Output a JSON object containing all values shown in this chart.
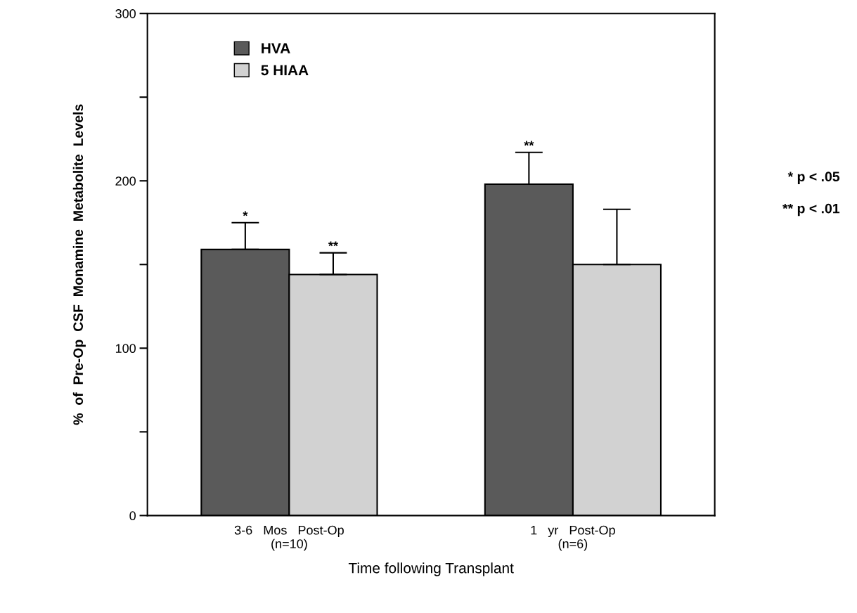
{
  "chart_data": {
    "type": "bar",
    "categories": [
      "3-6   Mos   Post-Op\n(n=10)",
      "1   yr   Post-Op\n(n=6)"
    ],
    "xlabel": "Time following Transplant",
    "ylabel": "%  of  Pre-Op  CSF  Monamine  Metabolite  Levels",
    "series": [
      {
        "name": "HVA",
        "color": "#5a5a5a",
        "values": [
          159,
          198
        ],
        "errors": [
          [
            159,
            175
          ],
          [
            198,
            217
          ]
        ],
        "value_labels": [
          "*",
          "**"
        ]
      },
      {
        "name": "5 HIAA",
        "color": "#d2d2d2",
        "values": [
          144,
          150
        ],
        "errors": [
          [
            144,
            157
          ],
          [
            150,
            183
          ]
        ],
        "value_labels": [
          "**",
          null
        ]
      }
    ],
    "ylim": [
      0,
      300
    ],
    "yticks": [
      0,
      {
        "value": 50,
        "label": null
      },
      100,
      {
        "value": 150,
        "label": null
      },
      200,
      {
        "value": 250,
        "label": null
      },
      300
    ],
    "annotations": [
      "* p < .05",
      "** p < .01"
    ],
    "legend": "top left",
    "grid": false
  }
}
